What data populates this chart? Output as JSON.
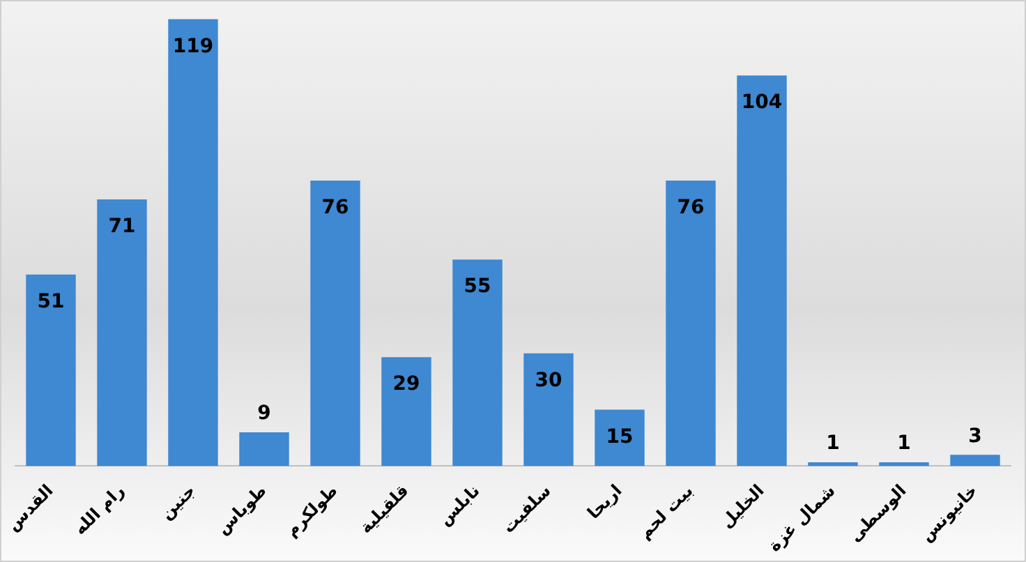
{
  "chart_data": {
    "type": "bar",
    "categories": [
      "القدس",
      "رام الله",
      "جنين",
      "طوباس",
      "طولكرم",
      "قلقيلية",
      "نابلس",
      "سلفيت",
      "اريحا",
      "بيت لحم",
      "الخليل",
      "شمال غزة",
      "الوسطى",
      "خانيونس"
    ],
    "values": [
      51,
      71,
      119,
      9,
      76,
      29,
      55,
      30,
      15,
      76,
      104,
      1,
      1,
      3
    ],
    "color": "#3f88d2",
    "data_labels": true,
    "grid": false,
    "legend": false
  }
}
